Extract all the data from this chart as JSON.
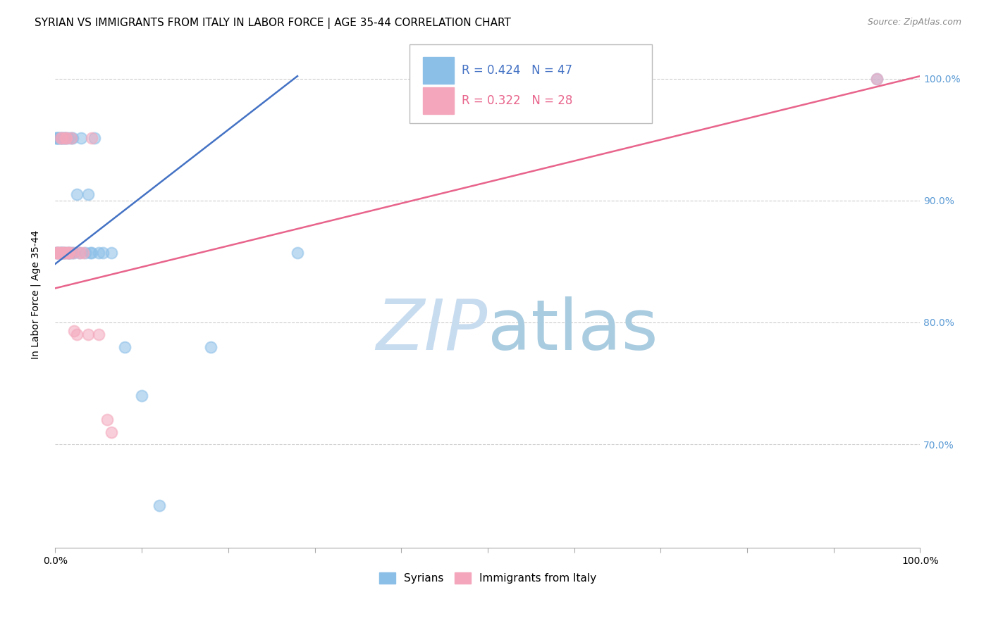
{
  "title": "SYRIAN VS IMMIGRANTS FROM ITALY IN LABOR FORCE | AGE 35-44 CORRELATION CHART",
  "source": "Source: ZipAtlas.com",
  "ylabel": "In Labor Force | Age 35-44",
  "xlim": [
    0.0,
    1.0
  ],
  "ylim": [
    0.615,
    1.03
  ],
  "yticks": [
    0.7,
    0.8,
    0.9,
    1.0
  ],
  "ytick_labels_right": [
    "70.0%",
    "80.0%",
    "90.0%",
    "100.0%"
  ],
  "xticks": [
    0.0,
    0.1,
    0.2,
    0.3,
    0.4,
    0.5,
    0.6,
    0.7,
    0.8,
    0.9,
    1.0
  ],
  "xtick_labels": [
    "0.0%",
    "",
    "",
    "",
    "",
    "",
    "",
    "",
    "",
    "",
    "100.0%"
  ],
  "syrians_x": [
    0.001,
    0.001,
    0.001,
    0.002,
    0.002,
    0.003,
    0.003,
    0.004,
    0.005,
    0.005,
    0.006,
    0.006,
    0.007,
    0.008,
    0.008,
    0.009,
    0.009,
    0.01,
    0.01,
    0.011,
    0.012,
    0.013,
    0.014,
    0.015,
    0.016,
    0.017,
    0.018,
    0.019,
    0.02,
    0.022,
    0.025,
    0.028,
    0.03,
    0.035,
    0.038,
    0.04,
    0.042,
    0.045,
    0.05,
    0.055,
    0.065,
    0.08,
    0.1,
    0.12,
    0.18,
    0.28,
    0.95
  ],
  "syrians_y": [
    0.951,
    0.857,
    0.951,
    0.951,
    0.857,
    0.951,
    0.857,
    0.951,
    0.951,
    0.857,
    0.951,
    0.857,
    0.857,
    0.951,
    0.857,
    0.951,
    0.857,
    0.857,
    0.951,
    0.951,
    0.857,
    0.951,
    0.857,
    0.951,
    0.857,
    0.857,
    0.951,
    0.857,
    0.951,
    0.857,
    0.905,
    0.857,
    0.951,
    0.857,
    0.905,
    0.857,
    0.857,
    0.951,
    0.857,
    0.857,
    0.857,
    0.78,
    0.74,
    0.65,
    0.78,
    0.857,
    1.0
  ],
  "italians_x": [
    0.001,
    0.002,
    0.003,
    0.004,
    0.005,
    0.006,
    0.007,
    0.008,
    0.009,
    0.01,
    0.011,
    0.012,
    0.013,
    0.014,
    0.015,
    0.016,
    0.018,
    0.02,
    0.022,
    0.025,
    0.028,
    0.032,
    0.038,
    0.042,
    0.05,
    0.06,
    0.065,
    0.95
  ],
  "italians_y": [
    0.857,
    0.857,
    0.857,
    0.857,
    0.857,
    0.951,
    0.857,
    0.951,
    0.857,
    0.857,
    0.857,
    0.951,
    0.951,
    0.857,
    0.857,
    0.857,
    0.951,
    0.857,
    0.793,
    0.79,
    0.857,
    0.857,
    0.79,
    0.951,
    0.79,
    0.72,
    0.71,
    1.0
  ],
  "blue_color": "#8BBFE8",
  "pink_color": "#F4A7BC",
  "blue_line_color": "#4472C4",
  "pink_line_color": "#E8648C",
  "blue_r": 0.424,
  "blue_n": 47,
  "pink_r": 0.322,
  "pink_n": 28,
  "blue_line_x": [
    0.0,
    0.28
  ],
  "blue_line_y": [
    0.848,
    1.002
  ],
  "pink_line_x": [
    0.0,
    1.0
  ],
  "pink_line_y": [
    0.828,
    1.002
  ],
  "background_color": "#FFFFFF",
  "grid_color": "#CCCCCC",
  "tick_label_color_right": "#5B9BD5",
  "watermark_zip_color": "#C8DCF0",
  "watermark_atlas_color": "#AACCE0"
}
